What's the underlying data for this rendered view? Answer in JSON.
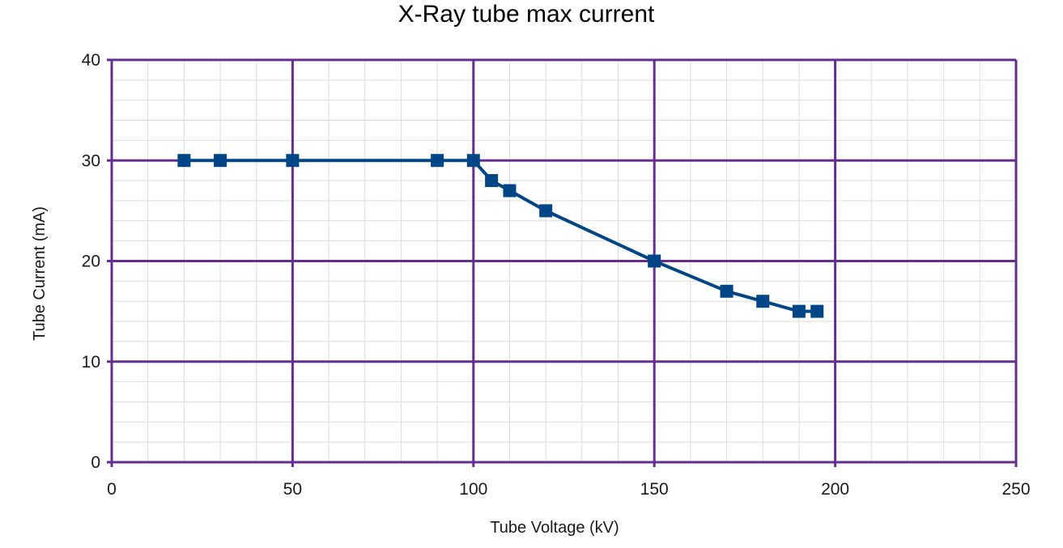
{
  "chart_data": {
    "type": "line",
    "title": "X-Ray tube max current",
    "xlabel": "Tube Voltage (kV)",
    "ylabel": "Tube Current (mA)",
    "xlim": [
      0,
      250
    ],
    "ylim": [
      0,
      40
    ],
    "x_major_ticks": [
      0,
      50,
      100,
      150,
      200,
      250
    ],
    "y_major_ticks": [
      0,
      10,
      20,
      30,
      40
    ],
    "x_minor_step": 10,
    "y_minor_step": 2,
    "grid": true,
    "legend": "none",
    "marker": "square",
    "series": [
      {
        "x": [
          20,
          30,
          50,
          90,
          100,
          105,
          110,
          120,
          150,
          170,
          180,
          190,
          195
        ],
        "y": [
          30,
          30,
          30,
          30,
          30,
          28,
          27,
          25,
          20,
          17,
          16,
          15,
          15
        ]
      }
    ],
    "colors": {
      "series": "#004586",
      "major_grid": "#662d91",
      "minor_grid": "#dddddd",
      "text": "#1a1a1a"
    }
  }
}
